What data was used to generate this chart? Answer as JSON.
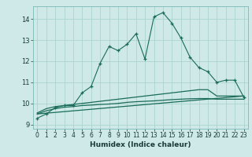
{
  "xlabel": "Humidex (Indice chaleur)",
  "background_color": "#cee9e8",
  "grid_color": "#aad4d0",
  "line_color": "#1a6b5a",
  "xlim": [
    -0.5,
    23.5
  ],
  "ylim": [
    8.8,
    14.6
  ],
  "yticks": [
    9,
    10,
    11,
    12,
    13,
    14
  ],
  "xticks": [
    0,
    1,
    2,
    3,
    4,
    5,
    6,
    7,
    8,
    9,
    10,
    11,
    12,
    13,
    14,
    15,
    16,
    17,
    18,
    19,
    20,
    21,
    22,
    23
  ],
  "series1_x": [
    0,
    1,
    2,
    3,
    4,
    5,
    6,
    7,
    8,
    9,
    10,
    11,
    12,
    13,
    14,
    15,
    16,
    17,
    18,
    19,
    20,
    21,
    22,
    23
  ],
  "series1_y": [
    9.3,
    9.5,
    9.8,
    9.9,
    9.9,
    10.5,
    10.8,
    11.9,
    12.7,
    12.5,
    12.8,
    13.3,
    12.1,
    14.1,
    14.3,
    13.8,
    13.1,
    12.2,
    11.7,
    11.5,
    11.0,
    11.1,
    11.1,
    10.3
  ],
  "series2_x": [
    0,
    1,
    2,
    3,
    4,
    5,
    6,
    7,
    8,
    9,
    10,
    11,
    12,
    13,
    14,
    15,
    16,
    17,
    18,
    19,
    20,
    21,
    22,
    23
  ],
  "series2_y": [
    9.55,
    9.75,
    9.85,
    9.9,
    9.95,
    10.0,
    10.05,
    10.1,
    10.15,
    10.2,
    10.25,
    10.3,
    10.35,
    10.4,
    10.45,
    10.5,
    10.55,
    10.6,
    10.65,
    10.65,
    10.35,
    10.35,
    10.35,
    10.35
  ],
  "series3_x": [
    0,
    1,
    2,
    3,
    4,
    5,
    6,
    7,
    8,
    9,
    10,
    11,
    12,
    13,
    14,
    15,
    16,
    17,
    18,
    19,
    20,
    21,
    22,
    23
  ],
  "series3_y": [
    9.5,
    9.65,
    9.75,
    9.82,
    9.85,
    9.9,
    9.92,
    9.95,
    9.97,
    10.0,
    10.05,
    10.08,
    10.1,
    10.12,
    10.15,
    10.18,
    10.2,
    10.22,
    10.23,
    10.23,
    10.2,
    10.2,
    10.2,
    10.2
  ],
  "series4_x": [
    0,
    23
  ],
  "series4_y": [
    9.5,
    10.35
  ]
}
